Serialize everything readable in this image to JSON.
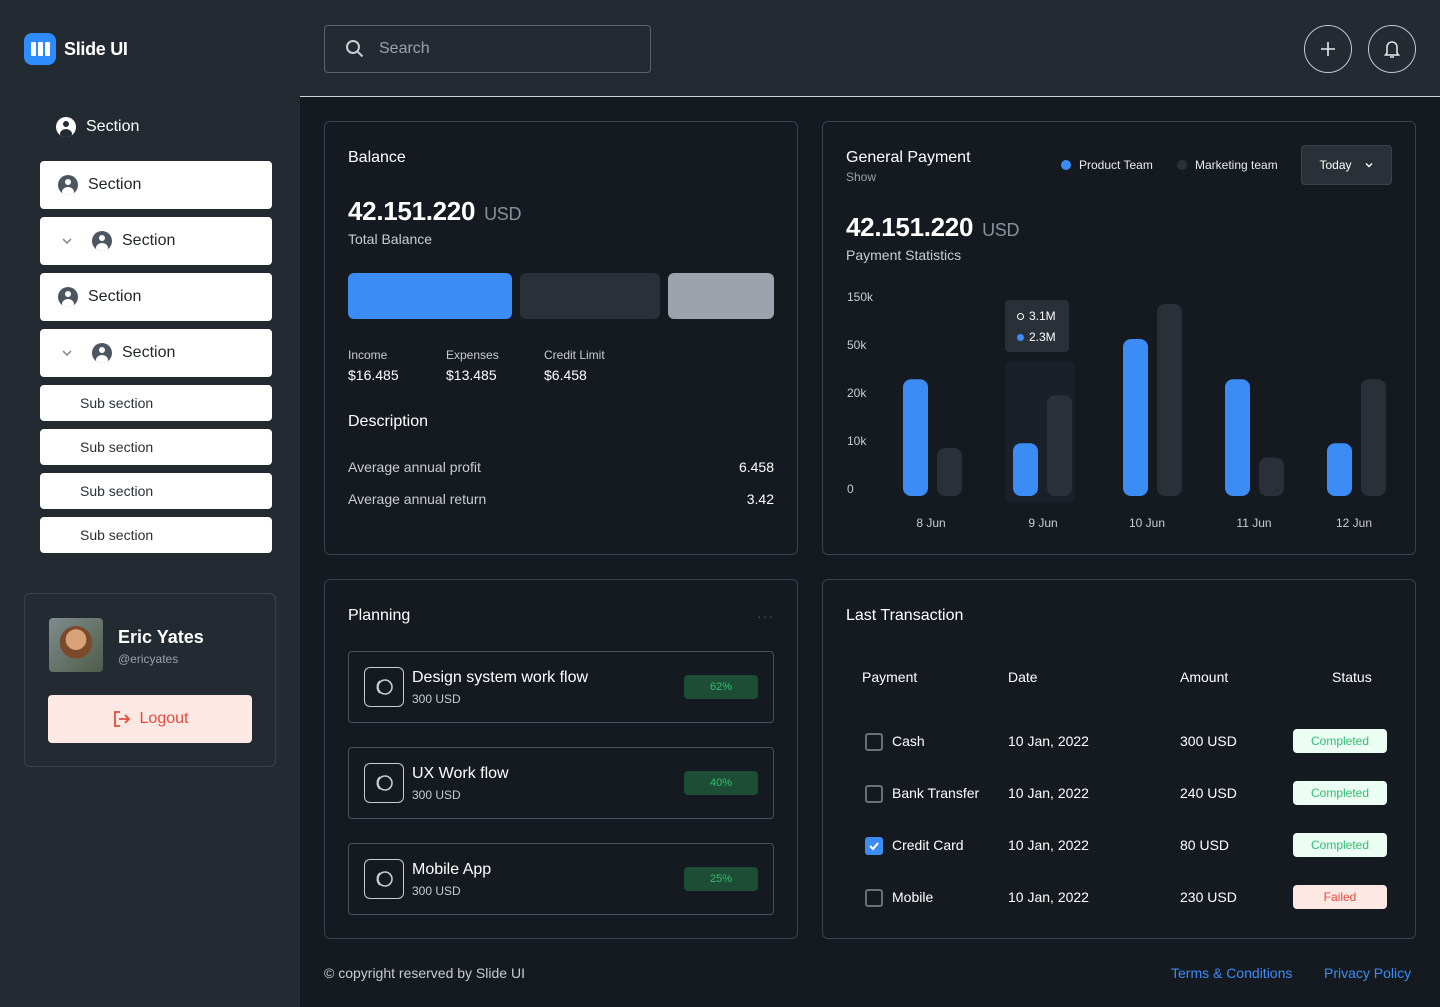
{
  "app": {
    "name": "Slide UI"
  },
  "sidebar": {
    "header_label": "Section",
    "sections": [
      {
        "label": "Section",
        "expandable": false
      },
      {
        "label": "Section",
        "expandable": true
      },
      {
        "label": "Section",
        "expandable": false
      },
      {
        "label": "Section",
        "expandable": true
      }
    ],
    "sub_sections": [
      "Sub section",
      "Sub section",
      "Sub section",
      "Sub section"
    ]
  },
  "profile": {
    "name": "Eric Yates",
    "handle": "@ericyates",
    "logout_label": "Logout"
  },
  "search": {
    "placeholder": "Search"
  },
  "balance": {
    "title": "Balance",
    "amount": "42.151.220",
    "currency": "USD",
    "caption": "Total Balance",
    "stats": [
      {
        "label": "Income",
        "value": "$16.485"
      },
      {
        "label": "Expenses",
        "value": "$13.485"
      },
      {
        "label": "Credit Limit",
        "value": "$6.458"
      }
    ],
    "description_title": "Description",
    "description": [
      {
        "label": "Average annual profit",
        "value": "6.458"
      },
      {
        "label": "Average annual return",
        "value": "3.42"
      }
    ]
  },
  "payment": {
    "title": "General Payment",
    "subtitle": "Show",
    "legend": [
      {
        "name": "Product Team",
        "color": "#3b8cf5"
      },
      {
        "name": "Marketing team",
        "color": "#2a3038"
      }
    ],
    "period": "Today",
    "amount": "42.151.220",
    "currency": "USD",
    "caption": "Payment Statistics",
    "tooltip": {
      "hollow": "3.1M",
      "filled": "2.3M"
    }
  },
  "chart_data": {
    "type": "bar",
    "categories": [
      "8 Jun",
      "9 Jun",
      "10 Jun",
      "11 Jun",
      "12 Jun"
    ],
    "y_ticks": [
      "150k",
      "50k",
      "20k",
      "10k",
      "0"
    ],
    "y_tick_values": [
      150,
      50,
      20,
      10,
      0
    ],
    "series": [
      {
        "name": "Product Team",
        "values": [
          33,
          11,
          77,
          33,
          11
        ],
        "color": "#3b8cf5"
      },
      {
        "name": "Marketing team",
        "values": [
          10,
          23,
          150,
          8,
          33
        ],
        "color": "#2a3038"
      }
    ]
  },
  "planning": {
    "title": "Planning",
    "items": [
      {
        "title": "Design system work flow",
        "sub": "300 USD",
        "progress": "62%"
      },
      {
        "title": "UX Work flow",
        "sub": "300 USD",
        "progress": "40%"
      },
      {
        "title": "Mobile App",
        "sub": "300 USD",
        "progress": "25%"
      }
    ]
  },
  "transactions": {
    "title": "Last Transaction",
    "headers": [
      "Payment",
      "Date",
      "Amount",
      "Status"
    ],
    "rows": [
      {
        "payment": "Cash",
        "date": "10 Jan, 2022",
        "amount": "300 USD",
        "status": "Completed",
        "checked": false
      },
      {
        "payment": "Bank Transfer",
        "date": "10 Jan, 2022",
        "amount": "240 USD",
        "status": "Completed",
        "checked": false
      },
      {
        "payment": "Credit Card",
        "date": "10 Jan, 2022",
        "amount": "80 USD",
        "status": "Completed",
        "checked": true
      },
      {
        "payment": "Mobile",
        "date": "10 Jan, 2022",
        "amount": "230 USD",
        "status": "Failed",
        "checked": false
      }
    ]
  },
  "footer": {
    "copyright": "© copyright reserved by Slide UI",
    "terms": "Terms & Conditions",
    "privacy": "Privacy Policy"
  }
}
